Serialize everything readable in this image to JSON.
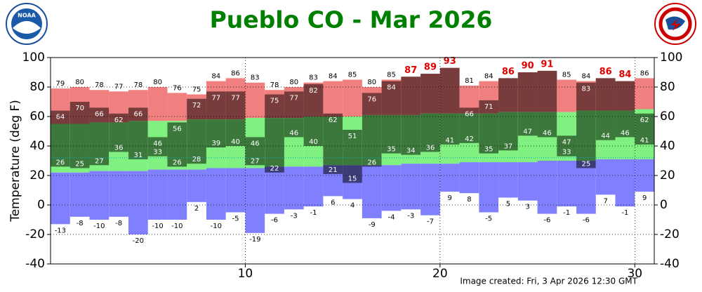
{
  "chart_data": {
    "type": "temperature-range",
    "title": "Pueblo CO - Mar 2026",
    "y_label": "Temperature (deg F)",
    "footer": "Image created: Fri, 3 Apr 2026 12:30 GMT",
    "logo_text": "NOAA",
    "x": [
      1,
      2,
      3,
      4,
      5,
      6,
      7,
      8,
      9,
      10,
      11,
      12,
      13,
      14,
      15,
      16,
      17,
      18,
      19,
      20,
      21,
      22,
      23,
      24,
      25,
      26,
      27,
      28,
      29,
      30,
      31
    ],
    "record_highs": [
      79,
      80,
      78,
      77,
      78,
      80,
      76,
      75,
      84,
      86,
      83,
      78,
      80,
      83,
      84,
      85,
      80,
      85,
      null,
      null,
      null,
      81,
      84,
      null,
      null,
      null,
      85,
      84,
      null,
      null,
      86
    ],
    "highs": [
      64,
      70,
      66,
      62,
      66,
      46,
      56,
      72,
      77,
      77,
      46,
      75,
      77,
      82,
      62,
      51,
      76,
      84,
      87,
      89,
      93,
      66,
      71,
      86,
      90,
      91,
      47,
      83,
      86,
      84,
      62
    ],
    "lows": [
      26,
      25,
      27,
      36,
      31,
      33,
      26,
      28,
      39,
      40,
      27,
      22,
      46,
      40,
      21,
      15,
      26,
      35,
      34,
      36,
      41,
      42,
      35,
      37,
      47,
      46,
      33,
      25,
      44,
      46,
      41
    ],
    "record_lows": [
      -13,
      -8,
      -10,
      -8,
      -20,
      -10,
      -10,
      2,
      -10,
      -5,
      -19,
      -6,
      -3,
      -1,
      6,
      4,
      -9,
      -4,
      -3,
      -7,
      9,
      8,
      -5,
      5,
      3,
      -6,
      -1,
      -6,
      7,
      -1,
      9
    ],
    "normal_highs": [
      55,
      55,
      56,
      56,
      57,
      57,
      57,
      58,
      58,
      58,
      59,
      59,
      59,
      60,
      60,
      60,
      61,
      61,
      61,
      62,
      62,
      62,
      62,
      63,
      63,
      63,
      63,
      64,
      64,
      64,
      65
    ],
    "normal_lows": [
      22,
      22,
      23,
      23,
      23,
      24,
      24,
      24,
      25,
      25,
      25,
      26,
      26,
      26,
      27,
      27,
      27,
      27,
      28,
      28,
      28,
      29,
      29,
      29,
      29,
      30,
      30,
      30,
      31,
      31,
      31
    ],
    "colors": {
      "record_high": "#f08080",
      "high": "#783c3c",
      "normal": "#80f080",
      "normal_obs": "#3c783c",
      "record_low": "#8080ff",
      "low": "#3c3c78",
      "record_label": "#e00000"
    },
    "freeze_line": 32,
    "xlim": [
      0,
      31
    ],
    "xticks": [
      10,
      20,
      30
    ],
    "ylim": [
      -40,
      100
    ],
    "yticks": [
      -40,
      -20,
      0,
      20,
      40,
      60,
      80,
      100
    ],
    "grid": true
  }
}
